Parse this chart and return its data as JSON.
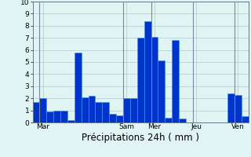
{
  "bar_values": [
    1.7,
    2.0,
    0.9,
    1.0,
    1.0,
    0.2,
    5.8,
    2.1,
    2.2,
    1.7,
    1.7,
    0.7,
    0.6,
    2.0,
    2.0,
    7.0,
    8.4,
    7.1,
    5.1,
    0.4,
    6.8,
    0.3,
    0.0,
    0.0,
    0.0,
    0.0,
    0.0,
    0.0,
    2.4,
    2.3,
    0.5
  ],
  "n_bars": 31,
  "bar_color": "#0033cc",
  "bar_edge_color": "#3399ff",
  "background_color": "#e0f4f4",
  "grid_color": "#aacccc",
  "xlabel": "Précipitations 24h ( mm )",
  "ylim": [
    0,
    10
  ],
  "yticks": [
    0,
    1,
    2,
    3,
    4,
    5,
    6,
    7,
    8,
    9,
    10
  ],
  "day_labels": [
    "Mar",
    "Sam",
    "Mer",
    "Jeu",
    "Ven"
  ],
  "day_tick_positions": [
    1,
    13,
    17,
    23,
    29
  ],
  "day_vline_positions": [
    0.5,
    12.5,
    16.5,
    22.5,
    28.5
  ],
  "tick_fontsize": 6.5,
  "xlabel_fontsize": 8.5
}
